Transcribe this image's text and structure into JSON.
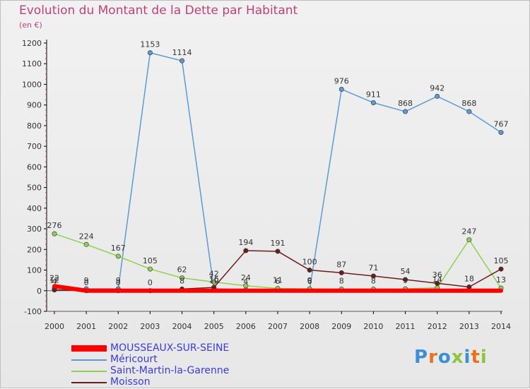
{
  "title": "Evolution du Montant de la Dette par Habitant",
  "subtitle": "(en €)",
  "logo": "Proxiti",
  "chart_data": {
    "type": "line",
    "title": "Evolution du Montant de la Dette par Habitant",
    "subtitle": "(en €)",
    "x": [
      "2000",
      "2001",
      "2002",
      "2003",
      "2004",
      "2005",
      "2006",
      "2007",
      "2008",
      "2009",
      "2010",
      "2011",
      "2012",
      "2013",
      "2014"
    ],
    "yticks": [
      "1200",
      "1100",
      "1000",
      "900",
      "800",
      "700",
      "600",
      "500",
      "400",
      "300",
      "200",
      "100",
      "0",
      "-100"
    ],
    "ylim": [
      -100,
      1200
    ],
    "grid": false,
    "legend_position": "bottom-left",
    "series": [
      {
        "name": "MOUSSEAUX-SUR-SEINE",
        "color": "#ff0000",
        "width": 6,
        "values": [
          22,
          0,
          0,
          0,
          0,
          0,
          0,
          0,
          0,
          0,
          0,
          0,
          0,
          0,
          0
        ],
        "labels": false
      },
      {
        "name": "Méricourt",
        "color": "#5b9bd5",
        "width": 1.5,
        "values": [
          12,
          9,
          9,
          1153,
          1114,
          10,
          4,
          6,
          6,
          976,
          911,
          868,
          942,
          868,
          767
        ],
        "labels": true
      },
      {
        "name": "Saint-Martin-la-Garenne",
        "color": "#8fd14f",
        "width": 1.5,
        "values": [
          276,
          224,
          167,
          105,
          62,
          42,
          24,
          11,
          9,
          8,
          8,
          9,
          14,
          247,
          13
        ],
        "labels": true
      },
      {
        "name": "Moisson",
        "color": "#6b1d1d",
        "width": 1.5,
        "values": [
          4,
          0,
          0,
          0,
          8,
          16,
          194,
          191,
          100,
          87,
          71,
          54,
          36,
          18,
          105
        ],
        "labels": true
      }
    ]
  }
}
